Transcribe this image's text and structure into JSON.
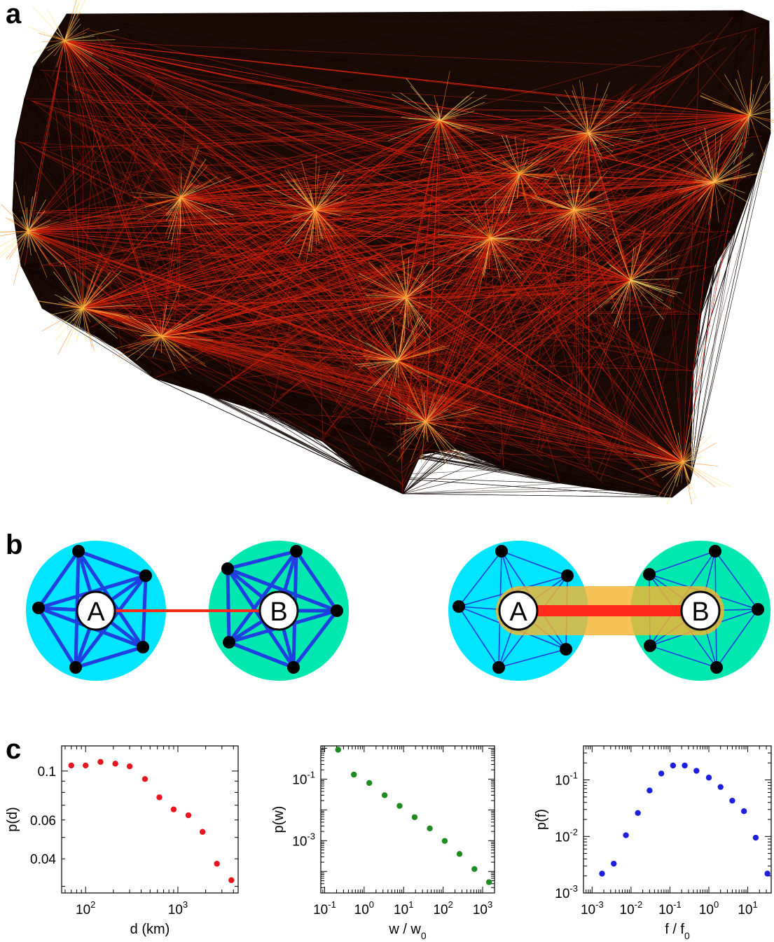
{
  "panels": {
    "a": "a",
    "b": "b",
    "c": "c"
  },
  "schematic": {
    "left": {
      "node_a": "A",
      "node_b": "B"
    },
    "right": {
      "node_a": "A",
      "node_b": "B"
    }
  },
  "colors": {
    "cluster_a": "#00e5ff",
    "cluster_b": "#00e8b0",
    "clique_edges": "#1f3fe0",
    "bridge": "#ff2a1a",
    "bridge_halo": "#f7b531",
    "map_black_links": "#1a0a06",
    "map_red_links": "#e02a10",
    "map_hot_links": "#ffe070"
  },
  "chart_data": [
    {
      "type": "scatter",
      "color": "#e8141e",
      "xlabel": "d (km)",
      "ylabel": "p(d)",
      "xscale": "log",
      "yscale": "log",
      "xlim": [
        55,
        4500
      ],
      "ylim": [
        0.028,
        0.13
      ],
      "xticks": [
        {
          "v": 100,
          "b": "10",
          "e": "2"
        },
        {
          "v": 1000,
          "b": "10",
          "e": "3"
        }
      ],
      "yticks": [
        {
          "v": 0.04,
          "t": "0.04"
        },
        {
          "v": 0.06,
          "t": "0.06"
        },
        {
          "v": 0.1,
          "t": "0.1"
        }
      ],
      "x": [
        70,
        100,
        145,
        210,
        300,
        440,
        630,
        900,
        1300,
        1850,
        2650,
        3800
      ],
      "y": [
        0.106,
        0.106,
        0.11,
        0.108,
        0.105,
        0.092,
        0.076,
        0.067,
        0.063,
        0.053,
        0.038,
        0.032
      ]
    },
    {
      "type": "scatter",
      "color": "#1f8a1f",
      "xlabel": "w / w",
      "xlabel_sub": "0",
      "ylabel": "p(w)",
      "xscale": "log",
      "yscale": "log",
      "xlim": [
        0.08,
        2000
      ],
      "ylim": [
        2e-05,
        1.2
      ],
      "xticks": [
        {
          "v": 0.1,
          "b": "10",
          "e": "-1"
        },
        {
          "v": 1,
          "b": "10",
          "e": "0"
        },
        {
          "v": 10,
          "b": "10",
          "e": "1"
        },
        {
          "v": 100,
          "b": "10",
          "e": "2"
        },
        {
          "v": 1000,
          "b": "10",
          "e": "3"
        }
      ],
      "yticks": [
        {
          "v": 0.1,
          "b": "10",
          "e": "-1"
        },
        {
          "v": 0.001,
          "b": "10",
          "e": "-3"
        }
      ],
      "x": [
        0.22,
        0.55,
        1.35,
        3.3,
        7.9,
        19,
        46,
        110,
        260,
        620,
        1450
      ],
      "y": [
        0.9,
        0.14,
        0.075,
        0.03,
        0.0135,
        0.0058,
        0.0025,
        0.00098,
        0.00037,
        0.00012,
        4.5e-05
      ]
    },
    {
      "type": "scatter",
      "color": "#1f1fe0",
      "xlabel": "f / f",
      "xlabel_sub": "0",
      "ylabel": "p(f)",
      "xscale": "log",
      "yscale": "log",
      "xlim": [
        0.0006,
        40
      ],
      "ylim": [
        0.001,
        0.4
      ],
      "xticks": [
        {
          "v": 0.001,
          "b": "10",
          "e": "-3"
        },
        {
          "v": 0.01,
          "b": "10",
          "e": "-2"
        },
        {
          "v": 0.1,
          "b": "10",
          "e": "-1"
        },
        {
          "v": 1,
          "b": "10",
          "e": "0"
        },
        {
          "v": 10,
          "b": "10",
          "e": "1"
        }
      ],
      "yticks": [
        {
          "v": 0.1,
          "b": "10",
          "e": "-1"
        },
        {
          "v": 0.01,
          "b": "10",
          "e": "-2"
        },
        {
          "v": 0.001,
          "b": "10",
          "e": "-3"
        }
      ],
      "x": [
        0.0018,
        0.0036,
        0.0074,
        0.015,
        0.03,
        0.06,
        0.12,
        0.24,
        0.48,
        1.0,
        2.0,
        4.0,
        8.0,
        16,
        32
      ],
      "y": [
        0.0022,
        0.0033,
        0.0105,
        0.026,
        0.065,
        0.13,
        0.18,
        0.18,
        0.145,
        0.11,
        0.075,
        0.043,
        0.028,
        0.0095,
        0.0022
      ]
    }
  ]
}
